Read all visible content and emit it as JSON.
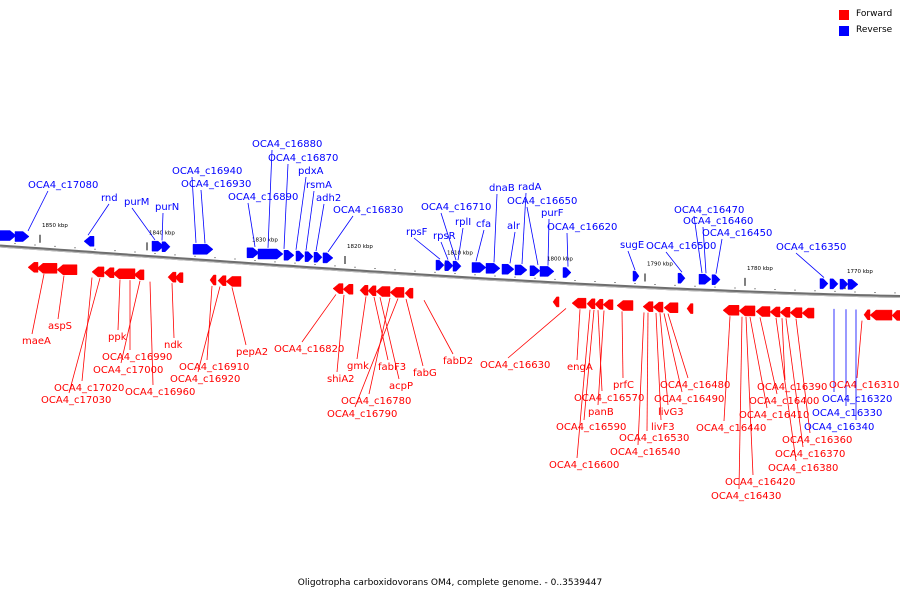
{
  "legend": {
    "forward_label": "Forward",
    "reverse_label": "Reverse",
    "forward_color": "#ff0000",
    "reverse_color": "#0000ff"
  },
  "caption": "Oligotropha carboxidovorans OM4, complete genome. - 0..3539447",
  "backbone_color": "#888888",
  "ticks": [
    "1850 kbp",
    "1840 kbp",
    "1830 kbp",
    "1820 kbp",
    "1810 kbp",
    "1800 kbp",
    "1790 kbp",
    "1780 kbp",
    "1770 kbp"
  ],
  "genes_reverse": [
    "OCA4_c17080",
    "rnd",
    "purM",
    "purN",
    "OCA4_c16940",
    "OCA4_c16930",
    "OCA4_c16890",
    "OCA4_c16880",
    "OCA4_c16870",
    "pdxA",
    "rsmA",
    "adh2",
    "OCA4_c16830",
    "rpsF",
    "rpsR",
    "OCA4_c16710",
    "rplI",
    "cfa",
    "dnaB",
    "alr",
    "radA",
    "OCA4_c16650",
    "purF",
    "OCA4_c16620",
    "sugE",
    "OCA4_c16500",
    "OCA4_c16470",
    "OCA4_c16460",
    "OCA4_c16450",
    "OCA4_c16350",
    "OCA4_c16320",
    "OCA4_c16330",
    "OCA4_c16340"
  ],
  "genes_forward": [
    "maeA",
    "aspS",
    "ppk",
    "OCA4_c17020",
    "OCA4_c17030",
    "OCA4_c16990",
    "OCA4_c17000",
    "ndk",
    "OCA4_c16960",
    "OCA4_c16910",
    "OCA4_c16920",
    "pepA2",
    "OCA4_c16820",
    "shiA2",
    "gmk",
    "fabF3",
    "acpP",
    "OCA4_c16780",
    "OCA4_c16790",
    "fabG",
    "fabD2",
    "OCA4_c16630",
    "engA",
    "prfC",
    "OCA4_c16570",
    "panB",
    "OCA4_c16590",
    "OCA4_c16600",
    "livG3",
    "livF3",
    "OCA4_c16530",
    "OCA4_c16540",
    "OCA4_c16480",
    "OCA4_c16490",
    "OCA4_c16440",
    "OCA4_c16400",
    "OCA4_c16410",
    "OCA4_c16390",
    "OCA4_c16360",
    "OCA4_c16370",
    "OCA4_c16380",
    "OCA4_c16420",
    "OCA4_c16430",
    "OCA4_c16310"
  ]
}
